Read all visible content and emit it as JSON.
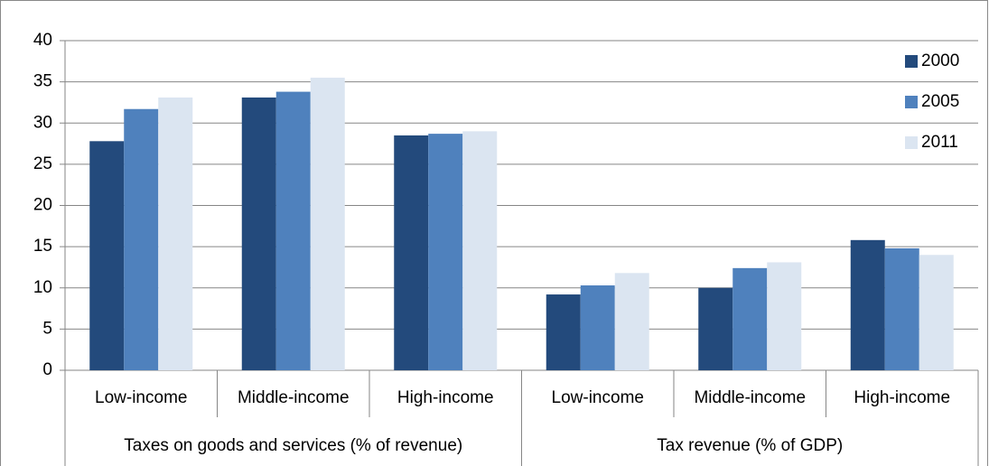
{
  "chart_data": {
    "type": "bar",
    "groups": [
      {
        "name": "Taxes on goods and services (% of revenue)",
        "categories": [
          "Low-income",
          "Middle-income",
          "High-income"
        ]
      },
      {
        "name": "Tax revenue (% of GDP)",
        "categories": [
          "Low-income",
          "Middle-income",
          "High-income"
        ]
      }
    ],
    "series": [
      {
        "name": "2000",
        "color": "#234a7c",
        "values": [
          27.8,
          33.1,
          28.5,
          9.2,
          10.0,
          15.8
        ]
      },
      {
        "name": "2005",
        "color": "#4f81bd",
        "values": [
          31.7,
          33.8,
          28.7,
          10.3,
          12.4,
          14.8
        ]
      },
      {
        "name": "2011",
        "color": "#dbe5f1",
        "values": [
          33.1,
          35.5,
          29.0,
          11.8,
          13.1,
          14.0
        ]
      }
    ],
    "ylim": [
      0,
      40
    ],
    "yticks": [
      0,
      5,
      10,
      15,
      20,
      25,
      30,
      35,
      40
    ],
    "grid": true,
    "legend": "top-right"
  }
}
